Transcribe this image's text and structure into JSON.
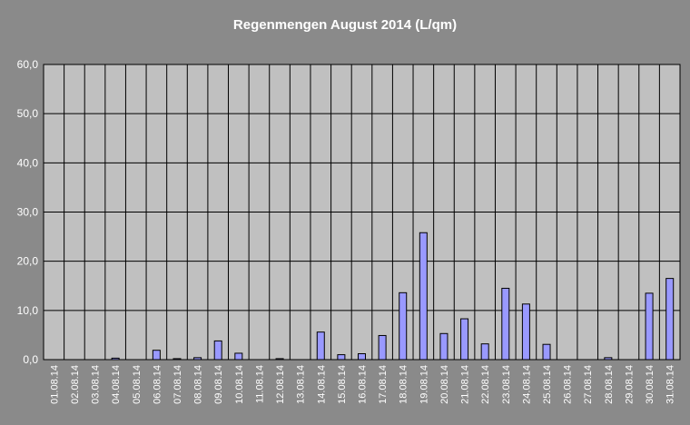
{
  "chart_data": {
    "type": "bar",
    "title": "Regenmengen August 2014 (L/qm)",
    "xlabel": "",
    "ylabel": "",
    "ylim": [
      0,
      60
    ],
    "yticks": [
      "0,0",
      "10,0",
      "20,0",
      "30,0",
      "40,0",
      "50,0",
      "60,0"
    ],
    "grid": true,
    "legend": "none",
    "categories": [
      "01.08.14",
      "02.08.14",
      "03.08.14",
      "04.08.14",
      "05.08.14",
      "06.08.14",
      "07.08.14",
      "08.08.14",
      "09.08.14",
      "10.08.14",
      "11.08.14",
      "12.08.14",
      "13.08.14",
      "14.08.14",
      "15.08.14",
      "16.08.14",
      "17.08.14",
      "18.08.14",
      "19.08.14",
      "20.08.14",
      "21.08.14",
      "22.08.14",
      "23.08.14",
      "24.08.14",
      "25.08.14",
      "26.08.14",
      "27.08.14",
      "28.08.14",
      "29.08.14",
      "30.08.14",
      "31.08.14"
    ],
    "values": [
      0,
      0,
      0,
      0.3,
      0,
      1.9,
      0.2,
      0.4,
      3.8,
      1.3,
      0,
      0.2,
      0,
      5.6,
      1.0,
      1.2,
      4.9,
      13.6,
      25.8,
      5.3,
      8.3,
      3.2,
      14.5,
      11.3,
      3.1,
      0,
      0,
      0.4,
      0,
      13.5,
      16.5
    ],
    "colors": {
      "background": "#8a8a8a",
      "plot_area": "#c0c0c0",
      "bar_fill": "#9999ff",
      "bar_stroke": "#000000",
      "grid": "#000000",
      "text": "#ffffff"
    }
  }
}
